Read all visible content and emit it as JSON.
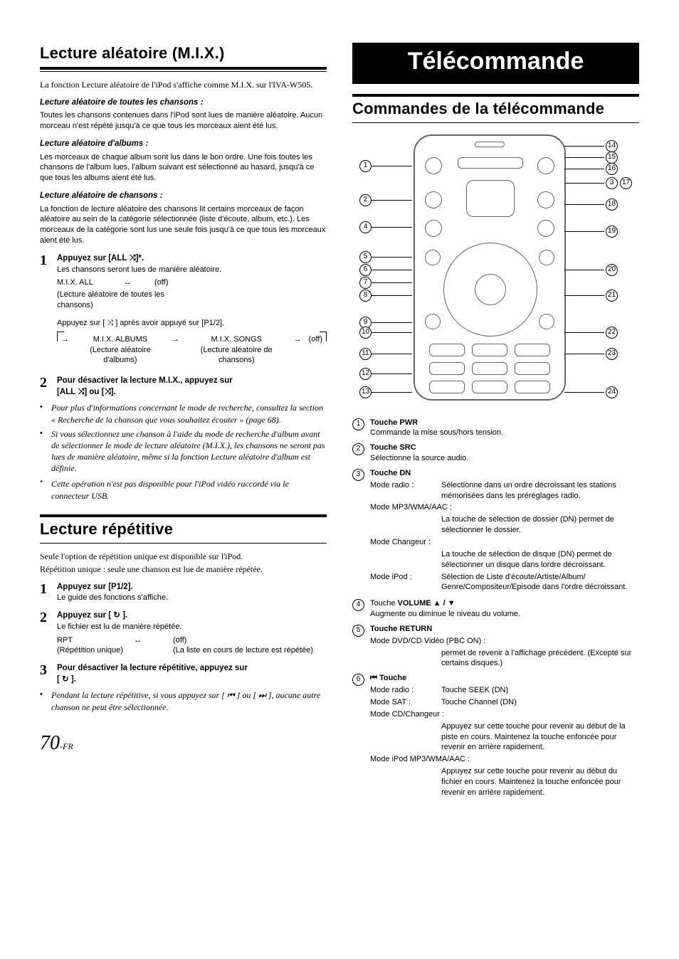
{
  "page_number_main": "70",
  "page_number_suffix": "-FR",
  "leftCol": {
    "sectionA": {
      "title": "Lecture aléatoire (M.I.X.)",
      "intro": "La fonction Lecture aléatoire de l'iPod s'affiche comme M.I.X. sur l'IVA-W505.",
      "sub1_title": "Lecture aléatoire de toutes les chansons :",
      "sub1_body": "Toutes les chansons contenues dans l'iPod sont lues de manière aléatoire. Aucun morceau n'est répété jusqu'à ce que tous les morceaux aient été lus.",
      "sub2_title": "Lecture aléatoire d'albums :",
      "sub2_body": "Les morceaux de chaque album sont lus dans le bon ordre. Une fois toutes les chansons de l'album lues, l'album suivant est sélectionné au hasard, jusqu'à ce que tous les albums aient été lus.",
      "sub3_title": "Lecture aléatoire de chansons :",
      "sub3_body": "La fonction de lecture aléatoire des chansons lit certains morceaux de façon aléatoire au sein de la catégorie sélectionnée (liste d'écoute, album, etc.). Les morceaux de la catégorie sont lus une seule fois jusqu'à ce que tous les morceaux aient été lus.",
      "step1_label_a": "Appuyez sur",
      "step1_label_b": "[ALL ",
      "step1_label_c": "]*.",
      "step1_body": "Les chansons seront lues de manière aléatoire.",
      "row1_a": "M.I.X. ALL",
      "row1_arrow": "↔",
      "row1_b": "(off)",
      "row1_sub": "(Lecture aléatoire de toutes les chansons)",
      "press_p12": "Appuyez sur [ ",
      "press_p12_b": " ] après avoir appuyé sur [P1/2].",
      "row2_a": "M.I.X. ALBUMS",
      "row2_a_sub": "(Lecture aléatoire d'albums)",
      "row2_b": "M.I.X. SONGS",
      "row2_b_sub": "(Lecture aléatoire de chansons)",
      "row2_off": "(off)",
      "step2_label": "Pour désactiver la lecture M.I.X., appuyez sur",
      "step2_btns_a": "[ALL ",
      "step2_btns_b": "] ou [",
      "step2_btns_c": "].",
      "notes": [
        "Pour plus d'informations concernant le mode de recherche, consultez la section « Recherche de la chanson que vous souhaitez écouter » (page 68).",
        "Si vous sélectionnez une chanson à l'aide du mode de recherche d'album avant de sélectionner le mode de lecture aléatoire (M.I.X.), les chansons ne seront pas lues de manière aléatoire, même si la fonction Lecture aléatoire d'album est définie."
      ],
      "star_note": "Cette opération n'est pas disponible pour l'iPod vidéo raccordé via le connecteur USB."
    },
    "sectionB": {
      "title": "Lecture répétitive",
      "intro1": "Seule l'option de répétition unique est disponible sur l'iPod.",
      "intro2": "Répétition unique : seule une chanson est lue de manière répétée.",
      "step1_label_a": "Appuyez sur",
      "step1_label_b": "[P1/2].",
      "step1_body": "Le guide des fonctions s'affiche.",
      "step2_label_a": "Appuyez sur",
      "step2_label_b": "[ ",
      "step2_label_c": " ].",
      "step2_body": "Le fichier est lu de manière répétée.",
      "row_a": "RPT",
      "row_a_sub": "(Répétition unique)",
      "row_arrow": "↔",
      "row_b": "(off)",
      "row_b_sub": "(La liste en cours de lecture est répétée)",
      "step3_label": "Pour désactiver la lecture répétitive, appuyez sur",
      "step3_btn_a": "[ ",
      "step3_btn_b": " ].",
      "note_a": "Pendant la lecture répétitive, si vous appuyez sur [ ",
      "note_b": " ] ou [ ",
      "note_c": " ], aucune autre chanson ne peut être sélectionnée."
    }
  },
  "rightCol": {
    "chapter_title": "Télécommande",
    "section_title": "Commandes de la télécommande",
    "callout_count": 24,
    "descriptions": [
      {
        "num": "1",
        "title": "Touche PWR",
        "lines": [
          {
            "text": "Commande la mise sous/hors tension."
          }
        ]
      },
      {
        "num": "2",
        "title": "Touche SRC",
        "lines": [
          {
            "text": "Sélectionne la source audio."
          }
        ]
      },
      {
        "num": "3",
        "title": "Touche DN",
        "modes": [
          {
            "label": "Mode radio :",
            "text": "Sélectionne dans un ordre décroissant les stations mémorisées dans les préréglages radio."
          },
          {
            "label": "Mode MP3/WMA/AAC :",
            "text": ""
          },
          {
            "sub": "La touche de sélection de dossier (DN) permet de sélectionner le dossier."
          },
          {
            "label": "Mode Changeur :",
            "text": ""
          },
          {
            "sub": "La touche de sélection de disque (DN) permet de sélectionner un disque dans lordre décroissant."
          },
          {
            "label": "Mode iPod :",
            "text": "Sélection de Liste d'écoute/Artiste/Album/ Genre/Compositeur/Episode dans l'ordre décroissant."
          }
        ]
      },
      {
        "num": "4",
        "title_pre": "Touche ",
        "title_bold": "VOLUME",
        "title_post": " ▲ / ▼",
        "lines": [
          {
            "text": "Augmente ou diminue le niveau du volume."
          }
        ]
      },
      {
        "num": "5",
        "title": "Touche RETURN",
        "modes": [
          {
            "label": "Mode DVD/CD Vidéo (PBC ON) :",
            "text": ""
          },
          {
            "sub": "permet de revenir à l'affichage précédent. (Excepté sur certains disques.)"
          }
        ]
      },
      {
        "num": "6",
        "title_icon": "⏮",
        "title": " Touche",
        "modes": [
          {
            "label": "Mode radio :",
            "text": "Touche SEEK (DN)"
          },
          {
            "label": "Mode SAT :",
            "text": "Touche Channel (DN)"
          },
          {
            "label": "Mode CD/Changeur :",
            "text": ""
          },
          {
            "sub": "Appuyez sur cette touche pour revenir au début de la piste en cours. Maintenez la touche enfoncée pour revenir en arrière rapidement."
          },
          {
            "label": "Mode iPod MP3/WMA/AAC :",
            "text": ""
          },
          {
            "sub": "Appuyez sur cette touche pour revenir au début du fichier en cours. Maintenez la touche enfoncée pour revenir en arrière rapidement."
          }
        ]
      }
    ]
  },
  "remote_layout": {
    "left_nums": [
      1,
      2,
      4,
      5,
      6,
      7,
      8,
      9,
      10,
      11,
      12,
      13
    ],
    "right_nums": [
      14,
      15,
      16,
      3,
      17,
      18,
      19,
      20,
      21,
      22,
      23,
      24
    ],
    "left_y": [
      42,
      90,
      128,
      170,
      188,
      206,
      224,
      262,
      276,
      306,
      334,
      360
    ],
    "right_y": [
      14,
      30,
      46,
      66,
      66,
      96,
      134,
      188,
      224,
      276,
      306,
      360
    ],
    "right_x_pair": true
  }
}
